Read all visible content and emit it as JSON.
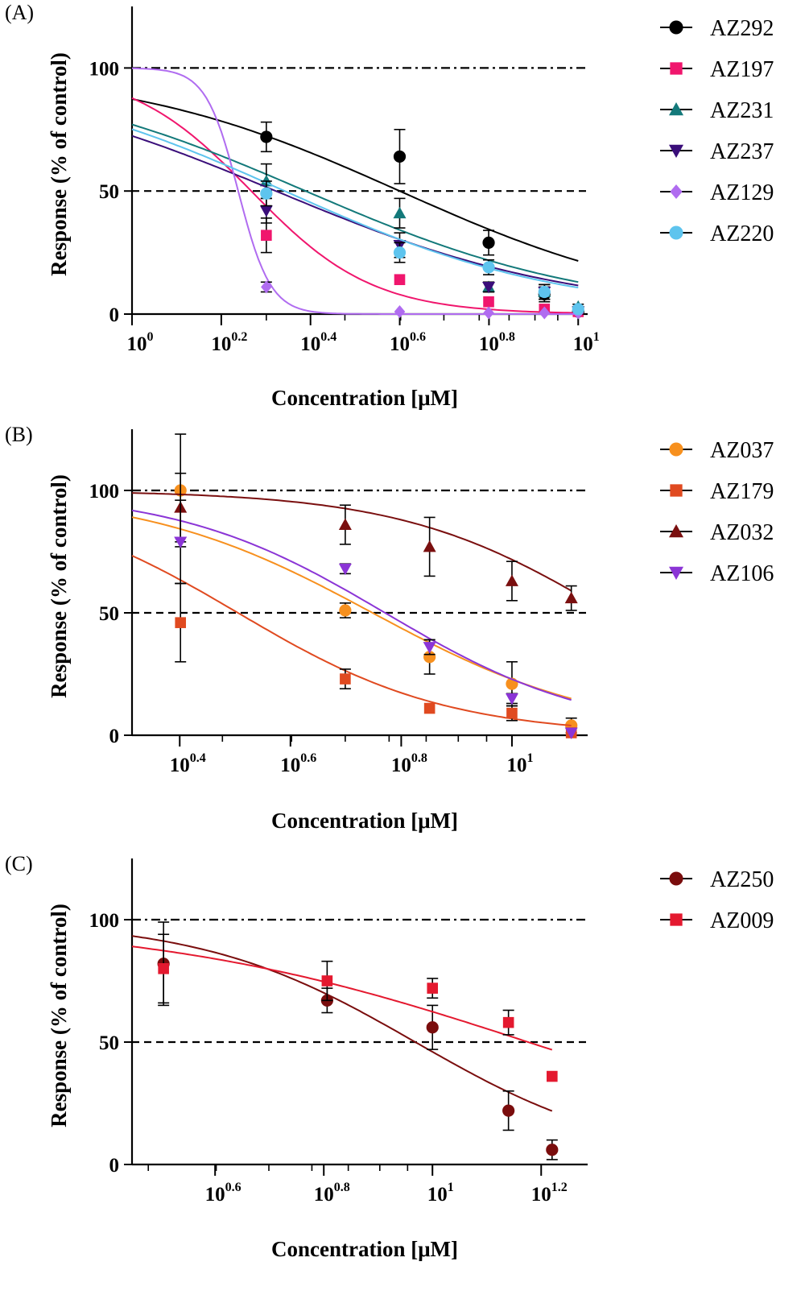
{
  "chart_data": [
    {
      "type": "scatter",
      "panel_label": "(A)",
      "xlabel": "Concentration [μM]",
      "ylabel": "Response (% of control)",
      "x_scale": "log",
      "x_ticks": [
        {
          "base": "10",
          "exp": "0",
          "value": 1
        },
        {
          "base": "10",
          "exp": "0.2",
          "value": 1.585
        },
        {
          "base": "10",
          "exp": "0.4",
          "value": 2.512
        },
        {
          "base": "10",
          "exp": "0.6",
          "value": 3.981
        },
        {
          "base": "10",
          "exp": "0.8",
          "value": 6.31
        },
        {
          "base": "10",
          "exp": "1",
          "value": 10
        }
      ],
      "xlim": [
        1,
        10.5
      ],
      "ylim": [
        0,
        125
      ],
      "y_ticks": [
        "0",
        "50",
        "100"
      ],
      "reference_lines": [
        {
          "y": 100,
          "style": "dash-dot"
        },
        {
          "y": 50,
          "style": "dashed"
        }
      ],
      "legend_position": "right",
      "series": [
        {
          "name": "AZ292",
          "color": "#000000",
          "marker": "circle",
          "ic50": 3.98,
          "hill": 1.4,
          "x": [
            2,
            3.98,
            6.3,
            8.4,
            10
          ],
          "y": [
            72,
            64,
            29,
            8,
            1
          ],
          "err": [
            6,
            11,
            5,
            3,
            1
          ]
        },
        {
          "name": "AZ197",
          "color": "#f0166d",
          "marker": "square",
          "ic50": 1.85,
          "hill": 3.2,
          "x": [
            2,
            3.98,
            6.3,
            8.4,
            10
          ],
          "y": [
            32,
            14,
            5,
            2,
            1
          ],
          "err": [
            7,
            0,
            0,
            0,
            0
          ]
        },
        {
          "name": "AZ231",
          "color": "#13797a",
          "marker": "triangle-up",
          "ic50": 2.45,
          "hill": 1.35,
          "x": [
            2,
            3.98,
            6.3,
            8.4,
            10
          ],
          "y": [
            54,
            41,
            11,
            9,
            3
          ],
          "err": [
            7,
            6,
            2,
            3,
            1
          ]
        },
        {
          "name": "AZ237",
          "color": "#3a0e7a",
          "marker": "triangle-down",
          "ic50": 2.1,
          "hill": 1.3,
          "x": [
            2,
            3.98,
            6.3,
            8.4,
            10
          ],
          "y": [
            42,
            28,
            11,
            9,
            1
          ],
          "err": [
            5,
            5,
            2,
            3,
            1
          ]
        },
        {
          "name": "AZ129",
          "color": "#b06cf0",
          "marker": "diamond",
          "ic50": 1.73,
          "hill": 12,
          "x": [
            2,
            3.98,
            6.3,
            8.4,
            10
          ],
          "y": [
            11,
            1,
            0.5,
            0.5,
            0.5
          ],
          "err": [
            2,
            0,
            0,
            0,
            0
          ]
        },
        {
          "name": "AZ220",
          "color": "#5ec4ee",
          "marker": "circle",
          "ic50": 2.2,
          "hill": 1.4,
          "x": [
            2,
            3.98,
            6.3,
            8.4,
            10
          ],
          "y": [
            49,
            25,
            19,
            9,
            2
          ],
          "err": [
            5,
            4,
            3,
            3,
            1
          ]
        }
      ]
    },
    {
      "type": "scatter",
      "panel_label": "(B)",
      "xlabel": "Concentration [μM]",
      "ylabel": "Response (% of control)",
      "x_scale": "log",
      "x_ticks": [
        {
          "base": "10",
          "exp": "0.4",
          "value": 2.512
        },
        {
          "base": "10",
          "exp": "0.6",
          "value": 3.981
        },
        {
          "base": "10",
          "exp": "0.8",
          "value": 6.31
        },
        {
          "base": "10",
          "exp": "1",
          "value": 10
        }
      ],
      "xlim": [
        2.06,
        13.7
      ],
      "ylim": [
        0,
        125
      ],
      "y_ticks": [
        "0",
        "50",
        "100"
      ],
      "reference_lines": [
        {
          "y": 100,
          "style": "dash-dot"
        },
        {
          "y": 50,
          "style": "dashed"
        }
      ],
      "legend_position": "right",
      "series": [
        {
          "name": "AZ037",
          "color": "#f7901e",
          "marker": "circle",
          "ic50": 5.6,
          "hill": 2.1,
          "x": [
            2.52,
            5.0,
            7.1,
            10,
            12.8
          ],
          "y": [
            100,
            51,
            32,
            21,
            4
          ],
          "err": [
            23,
            3,
            7,
            9,
            3
          ]
        },
        {
          "name": "AZ179",
          "color": "#e04a20",
          "marker": "square",
          "ic50": 3.2,
          "hill": 2.3,
          "x": [
            2.52,
            5.0,
            7.1,
            10,
            12.8
          ],
          "y": [
            46,
            23,
            11,
            9,
            1
          ],
          "err": [
            16,
            4,
            0,
            3,
            0
          ]
        },
        {
          "name": "AZ032",
          "color": "#7a0f0f",
          "marker": "triangle-up",
          "ic50": 15,
          "hill": 2.3,
          "x": [
            2.52,
            5.0,
            7.1,
            10,
            12.8
          ],
          "y": [
            93,
            86,
            77,
            63,
            56
          ],
          "err": [
            14,
            8,
            12,
            8,
            5
          ]
        },
        {
          "name": "AZ106",
          "color": "#8b35d6",
          "marker": "triangle-down",
          "ic50": 5.9,
          "hill": 2.3,
          "x": [
            2.52,
            5.0,
            7.1,
            10,
            12.8
          ],
          "y": [
            79,
            68,
            36,
            15,
            1
          ],
          "err": [
            17,
            2,
            3,
            2,
            0
          ]
        }
      ]
    },
    {
      "type": "scatter",
      "panel_label": "(C)",
      "xlabel": "Concentration [μM]",
      "ylabel": "Response (% of control)",
      "x_scale": "log",
      "x_ticks": [
        {
          "base": "10",
          "exp": "0.6",
          "value": 3.981
        },
        {
          "base": "10",
          "exp": "0.8",
          "value": 6.31
        },
        {
          "base": "10",
          "exp": "1",
          "value": 10
        },
        {
          "base": "10",
          "exp": "1.2",
          "value": 15.85
        }
      ],
      "xlim": [
        2.8,
        19.3
      ],
      "ylim": [
        0,
        125
      ],
      "y_ticks": [
        "0",
        "50",
        "100"
      ],
      "reference_lines": [
        {
          "y": 100,
          "style": "dash-dot"
        },
        {
          "y": 50,
          "style": "dashed"
        }
      ],
      "legend_position": "right",
      "series": [
        {
          "name": "AZ250",
          "color": "#7a0d0d",
          "marker": "circle",
          "ic50": 9.3,
          "hill": 2.2,
          "x": [
            3.2,
            6.4,
            10,
            13.8,
            16.6
          ],
          "y": [
            82,
            67,
            56,
            22,
            6
          ],
          "err": [
            17,
            5,
            9,
            8,
            4
          ]
        },
        {
          "name": "AZ009",
          "color": "#e4192f",
          "marker": "square",
          "ic50": 15,
          "hill": 1.25,
          "x": [
            3.2,
            6.4,
            10,
            13.8,
            16.6
          ],
          "y": [
            80,
            75,
            72,
            58,
            36
          ],
          "err": [
            14,
            8,
            4,
            5,
            0
          ]
        }
      ]
    }
  ]
}
